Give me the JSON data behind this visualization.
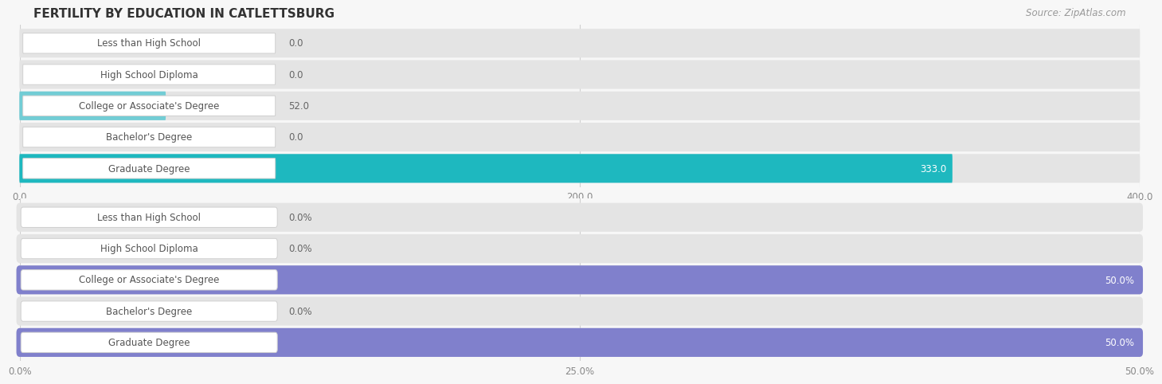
{
  "title": "FERTILITY BY EDUCATION IN CATLETTSBURG",
  "source": "Source: ZipAtlas.com",
  "categories": [
    "Less than High School",
    "High School Diploma",
    "College or Associate's Degree",
    "Bachelor's Degree",
    "Graduate Degree"
  ],
  "chart1_values": [
    0.0,
    0.0,
    52.0,
    0.0,
    333.0
  ],
  "chart1_xlim": [
    0,
    400
  ],
  "chart1_xticks": [
    0.0,
    200.0,
    400.0
  ],
  "chart1_bar_colors": [
    "#72cdd5",
    "#72cdd5",
    "#72cdd5",
    "#72cdd5",
    "#1eb8bf"
  ],
  "chart2_values": [
    0.0,
    0.0,
    50.0,
    0.0,
    50.0
  ],
  "chart2_xlim": [
    0,
    50
  ],
  "chart2_xticks": [
    0.0,
    25.0,
    50.0
  ],
  "chart2_xtick_labels": [
    "0.0%",
    "25.0%",
    "50.0%"
  ],
  "chart2_bar_colors": [
    "#a0a0e8",
    "#a0a0e8",
    "#8080cc",
    "#a0a0e8",
    "#8080cc"
  ],
  "bar_label_color_white": "#ffffff",
  "bar_label_color_dark": "#666666",
  "background_color": "#f7f7f7",
  "bar_bg_color": "#e4e4e4",
  "label_box_color": "#ffffff",
  "label_box_edge_color": "#d0d0d0",
  "grid_color": "#d0d0d0",
  "title_fontsize": 11,
  "label_fontsize": 8.5,
  "value_fontsize": 8.5,
  "source_fontsize": 8.5,
  "tick_fontsize": 8.5
}
